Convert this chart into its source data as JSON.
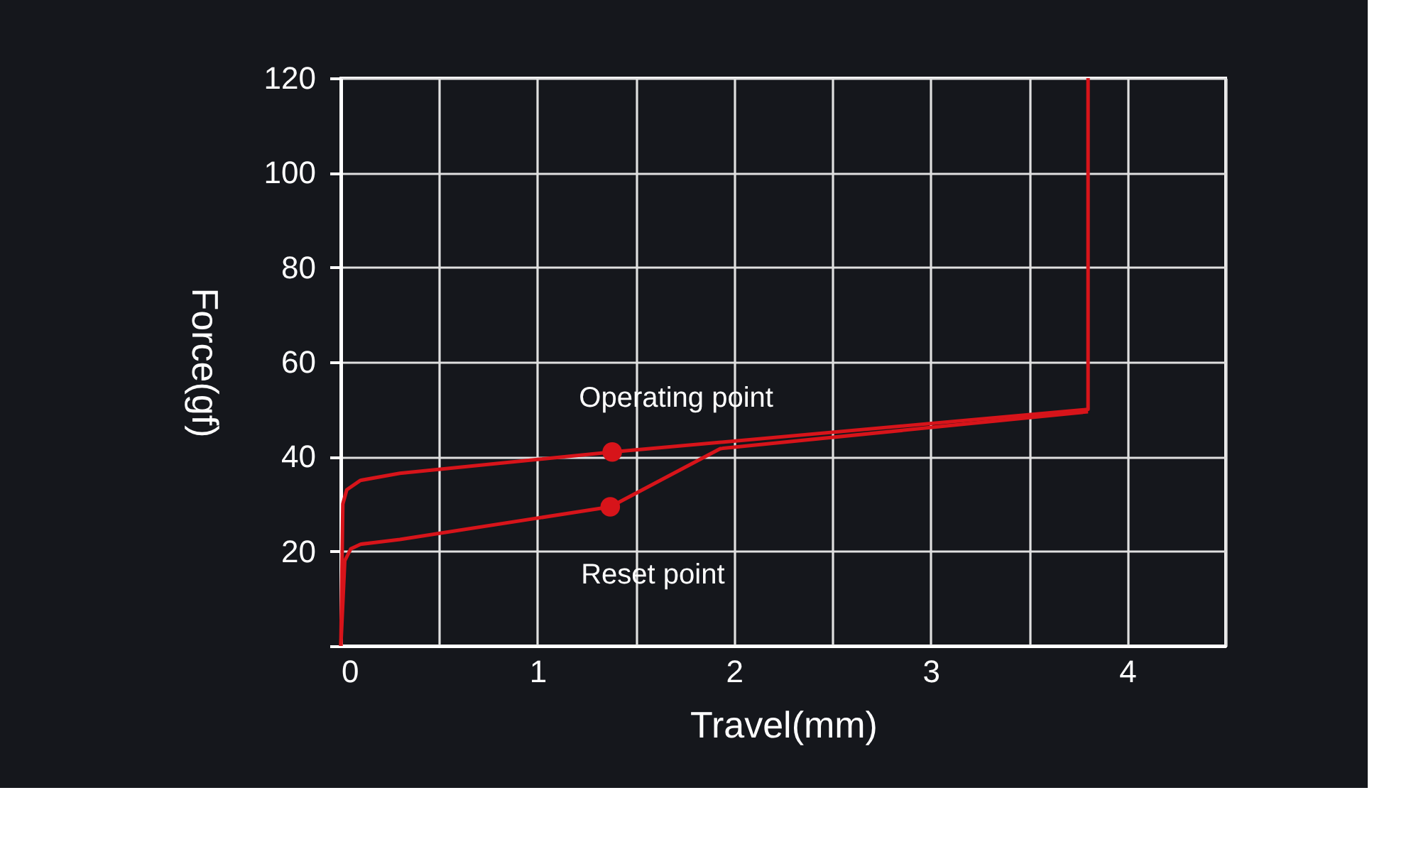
{
  "chart_data": {
    "type": "line",
    "xlabel": "Travel(mm)",
    "ylabel": "Force(gf)",
    "xlim": [
      0,
      4.5
    ],
    "ylim": [
      0,
      120
    ],
    "xticks": [
      0,
      {
        "value": 0.5,
        "label": null
      },
      1,
      {
        "value": 1.5,
        "label": null
      },
      2,
      {
        "value": 2.5,
        "label": null
      },
      3,
      {
        "value": 3.5,
        "label": null
      },
      4,
      {
        "value": 4.5,
        "label": null
      }
    ],
    "yticks": [
      {
        "value": 0,
        "label": null
      },
      20,
      40,
      60,
      80,
      100,
      120
    ],
    "grid": true,
    "line_style": "solid",
    "series": [
      {
        "color": "#d7141a",
        "x": [
          0,
          0.01,
          0.03,
          0.1,
          0.3,
          1.38,
          3.8,
          3.8
        ],
        "values": [
          0,
          30,
          33,
          35,
          36.5,
          41,
          50,
          120
        ]
      },
      {
        "color": "#d7141a",
        "x": [
          0,
          0.02,
          0.05,
          0.1,
          0.3,
          1.37,
          1.93,
          3.8
        ],
        "values": [
          0,
          18,
          20.5,
          21.5,
          22.5,
          29.4,
          41.7,
          49.5
        ]
      },
      {
        "type": "scatter",
        "marker": "circle",
        "color": "#d7141a",
        "x": [
          1.38,
          1.37
        ],
        "values": [
          41,
          29.4
        ]
      }
    ],
    "annotations": [
      {
        "text": "Operating point",
        "x": 1.38,
        "y": 41
      },
      {
        "text": "Reset point",
        "x": 1.37,
        "y": 29.4
      }
    ]
  }
}
